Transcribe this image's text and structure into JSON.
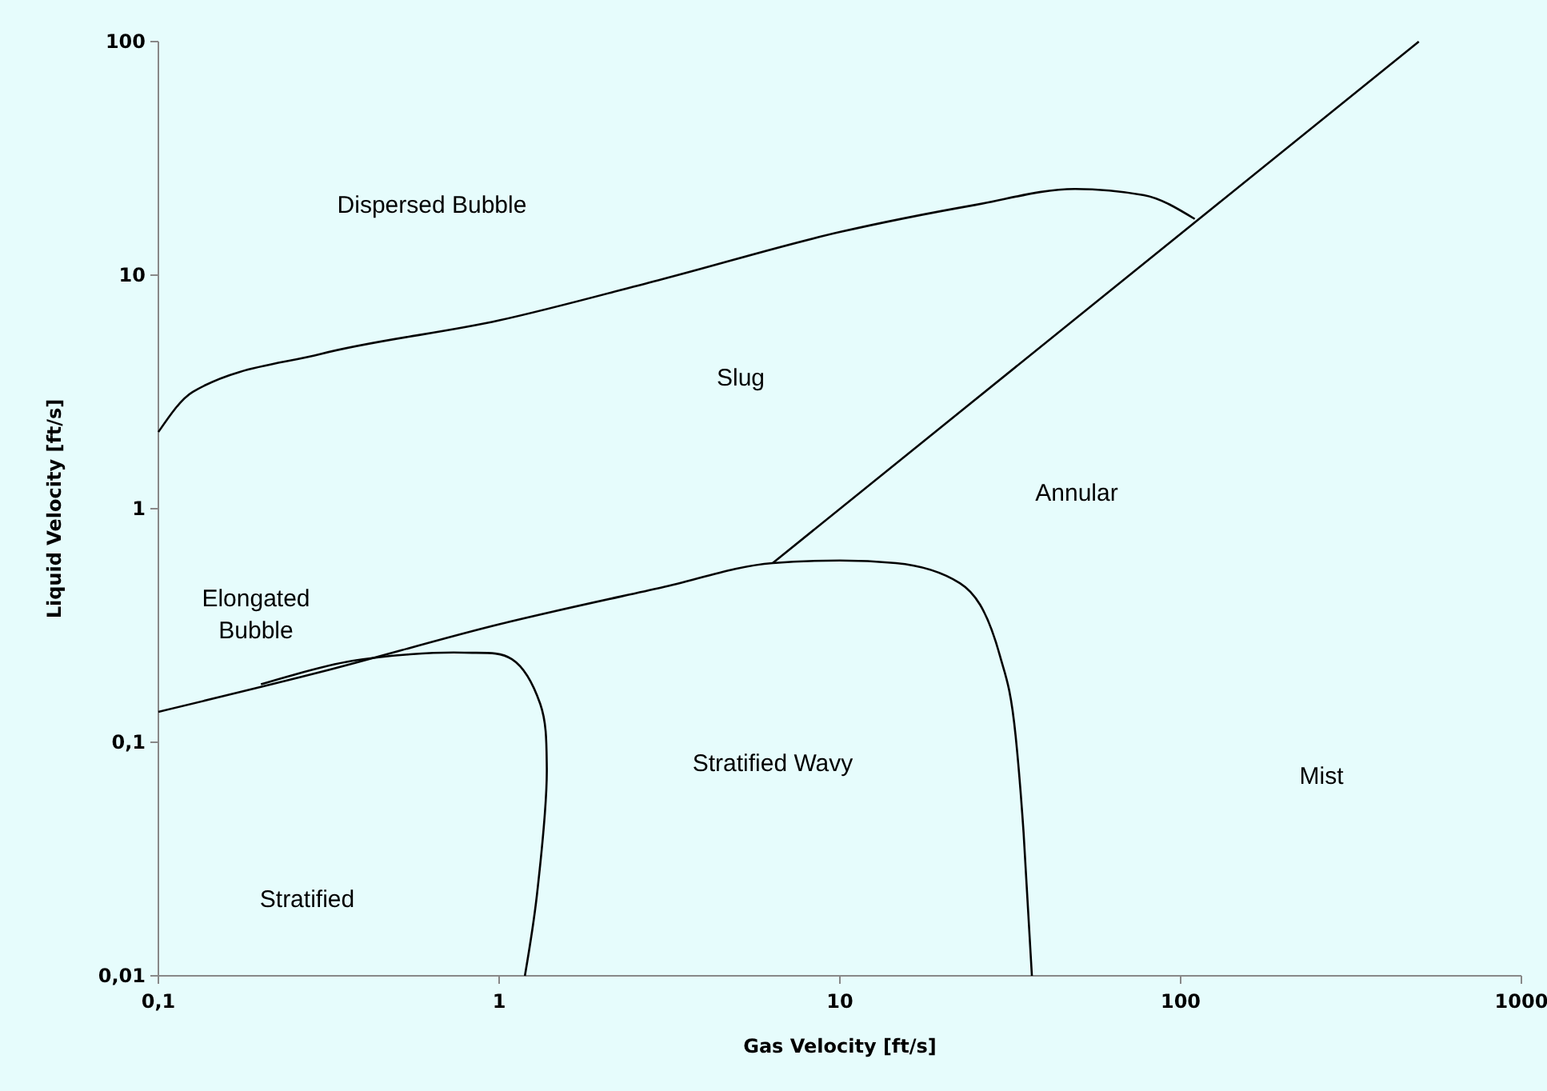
{
  "chart_data": {
    "type": "line",
    "xlabel": "Gas Velocity [ft/s]",
    "ylabel": "Liquid Velocity [ft/s]",
    "log": "xy",
    "marker": "none",
    "line_style": "solid",
    "grid": false,
    "xlim": [
      0.1,
      1000
    ],
    "xticks": [
      {
        "value": 0.1,
        "label": "0,1"
      },
      1,
      10,
      100,
      1000
    ],
    "ylim": [
      0.01,
      100
    ],
    "yticks": [
      {
        "value": 0.01,
        "label": "0,01"
      },
      {
        "value": 0.1,
        "label": "0,1"
      },
      1,
      10,
      100
    ],
    "series": [
      {
        "color": "#000000",
        "x": [
          0.1,
          0.126,
          0.3,
          1,
          3,
          10,
          25,
          49,
          78,
          110
        ],
        "values": [
          2.13,
          3.16,
          4.6,
          6.4,
          9.6,
          15.3,
          20,
          23.4,
          22,
          17.4
        ]
      },
      {
        "color": "#000000",
        "x": [
          6.35,
          500
        ],
        "values": [
          0.585,
          100
        ]
      },
      {
        "color": "#000000",
        "x": [
          0.1,
          0.3,
          1,
          3,
          6.35,
          10,
          14.6,
          22.5,
          29.5,
          32.8,
          34.6,
          36.6
        ],
        "values": [
          0.135,
          0.2,
          0.32,
          0.46,
          0.585,
          0.6,
          0.585,
          0.48,
          0.234,
          0.106,
          0.041,
          0.01
        ]
      },
      {
        "color": "#000000",
        "x": [
          0.2,
          0.37,
          0.79,
          1.09,
          1.32,
          1.38,
          1.29,
          1.19
        ],
        "values": [
          0.177,
          0.223,
          0.242,
          0.227,
          0.146,
          0.078,
          0.022,
          0.01
        ]
      }
    ],
    "annotations": [
      "Dispersed Bubble",
      "Slug",
      "Annular",
      "Elongated\nBubble",
      "Stratified Wavy",
      "Mist",
      "Stratified"
    ]
  }
}
